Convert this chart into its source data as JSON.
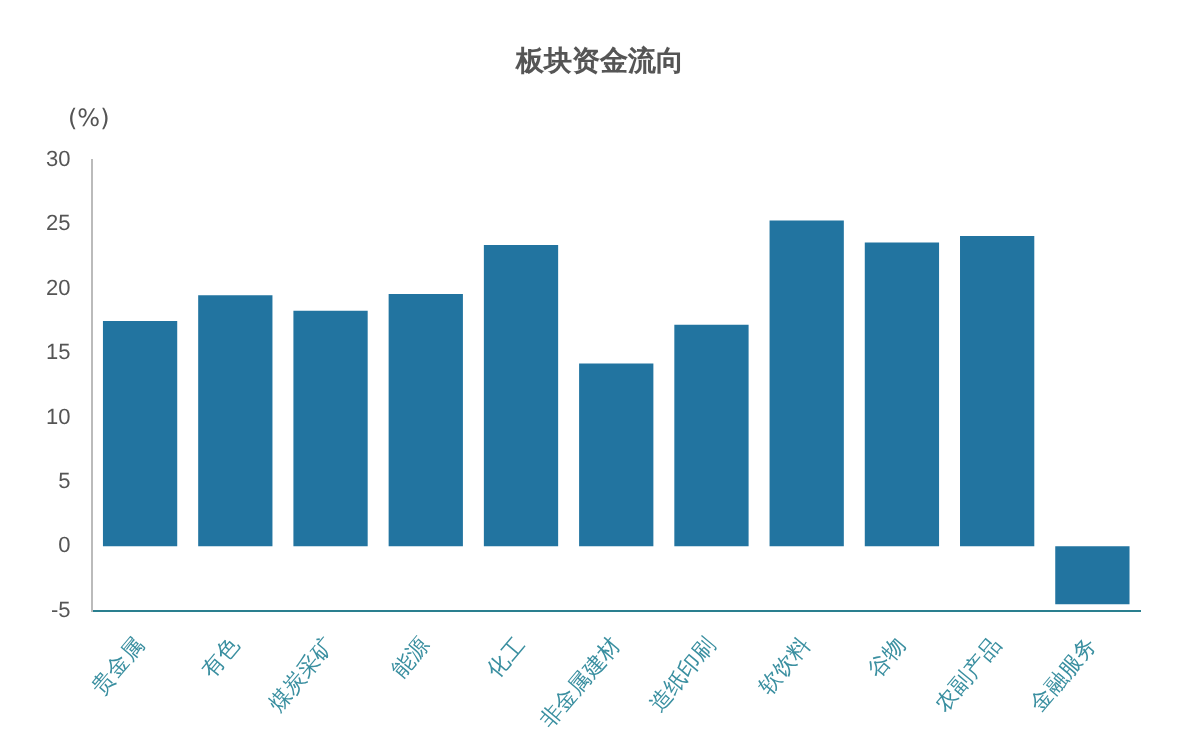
{
  "chart_data": {
    "type": "bar",
    "title": "板块资金流向",
    "ylabel": "(%)",
    "categories": [
      "贵金属",
      "有色",
      "煤炭采矿",
      "能源",
      "化工",
      "非金属建材",
      "造纸印刷",
      "软饮料",
      "谷物",
      "农副产品",
      "金融服务"
    ],
    "values": [
      17.5,
      19.5,
      18.3,
      19.6,
      23.4,
      14.2,
      17.2,
      25.3,
      23.6,
      24.1,
      -4.5
    ],
    "color": "#2274a0",
    "ylim": [
      -5,
      30
    ],
    "yticks": [
      -5,
      0,
      5,
      10,
      15,
      20,
      25,
      30
    ],
    "grid": false,
    "legend": false
  }
}
